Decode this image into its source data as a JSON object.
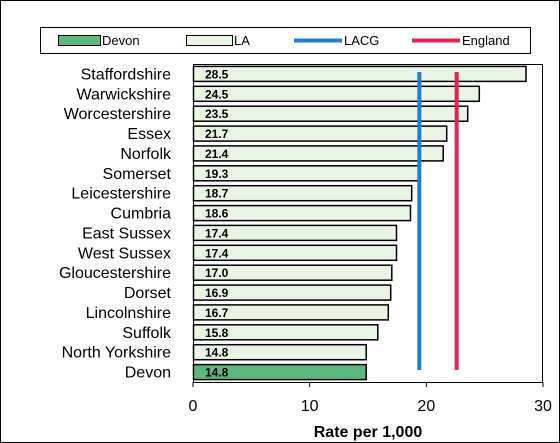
{
  "chart_data": {
    "type": "bar",
    "orientation": "horizontal",
    "categories": [
      "Staffordshire",
      "Warwickshire",
      "Worcestershire",
      "Essex",
      "Norfolk",
      "Somerset",
      "Leicestershire",
      "Cumbria",
      "East Sussex",
      "West Sussex",
      "Gloucestershire",
      "Dorset",
      "Lincolnshire",
      "Suffolk",
      "North Yorkshire",
      "Devon"
    ],
    "values": [
      28.5,
      24.5,
      23.5,
      21.7,
      21.4,
      19.3,
      18.7,
      18.6,
      17.4,
      17.4,
      17.0,
      16.9,
      16.7,
      15.8,
      14.8,
      14.8
    ],
    "value_labels": [
      "28.5",
      "24.5",
      "23.5",
      "21.7",
      "21.4",
      "19.3",
      "18.7",
      "18.6",
      "17.4",
      "17.4",
      "17.0",
      "16.9",
      "16.7",
      "15.8",
      "14.8",
      "14.8"
    ],
    "highlight_category": "Devon",
    "reference_lines": [
      {
        "name": "LACG",
        "value": 19.4,
        "color": "#1f7fcf"
      },
      {
        "name": "England",
        "value": 22.6,
        "color": "#e0244f"
      }
    ],
    "legend": {
      "placement": "top",
      "entries": [
        {
          "label": "Devon",
          "kind": "bar",
          "color": "#5cb87e"
        },
        {
          "label": "LA",
          "kind": "bar",
          "color": "#e8f4e4"
        },
        {
          "label": "LACG",
          "kind": "line",
          "color": "#1f7fcf"
        },
        {
          "label": "England",
          "kind": "line",
          "color": "#e0244f"
        }
      ]
    },
    "colors": {
      "devon": "#5cb87e",
      "la": "#e8f4e4",
      "bar_stroke": "#000000"
    },
    "xlabel": "Rate per 1,000",
    "ylabel": "",
    "xlim": [
      0,
      30
    ],
    "xticks": [
      0,
      10,
      20,
      30
    ],
    "grid": false
  }
}
